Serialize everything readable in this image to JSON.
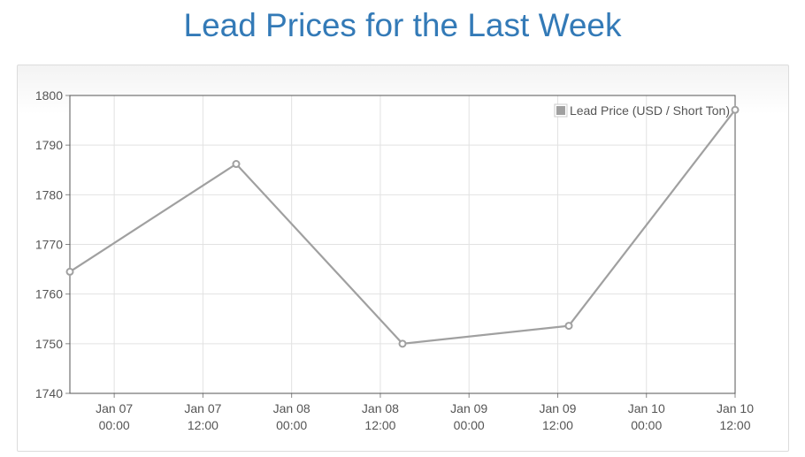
{
  "title": "Lead Prices for the Last Week",
  "chart_data": {
    "type": "line",
    "title": "Lead Prices for the Last Week",
    "xlabel": "",
    "ylabel": "",
    "ylim": [
      1740,
      1800
    ],
    "y_ticks": [
      "1740",
      "1750",
      "1760",
      "1770",
      "1780",
      "1790",
      "1800"
    ],
    "x_range": [
      "2015-01-06 18:00",
      "2015-01-10 18:00"
    ],
    "x_ticks": [
      {
        "date": "Jan 07",
        "time": "00:00"
      },
      {
        "date": "Jan 07",
        "time": "12:00"
      },
      {
        "date": "Jan 08",
        "time": "00:00"
      },
      {
        "date": "Jan 08",
        "time": "12:00"
      },
      {
        "date": "Jan 09",
        "time": "00:00"
      },
      {
        "date": "Jan 09",
        "time": "12:00"
      },
      {
        "date": "Jan 10",
        "time": "00:00"
      },
      {
        "date": "Jan 10",
        "time": "12:00"
      }
    ],
    "grid": true,
    "legend_position": "top-right",
    "series": [
      {
        "name": "Lead Price (USD / Short Ton)",
        "color": "#a0a0a0",
        "x": [
          "Jan 06 18:00",
          "Jan 07 18:00",
          "Jan 08 18:00",
          "Jan 09 18:00",
          "Jan 10 18:00"
        ],
        "values": [
          1764.5,
          1786.2,
          1750.0,
          1753.6,
          1797.1
        ]
      }
    ]
  }
}
